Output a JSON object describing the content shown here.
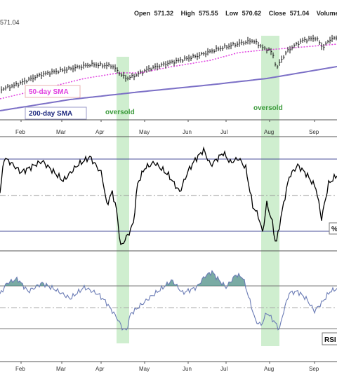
{
  "quote": {
    "open_label": "Open",
    "open": "571.32",
    "high_label": "High",
    "high": "575.55",
    "low_label": "Low",
    "low": "570.62",
    "close_label": "Close",
    "close": "571.04",
    "volume_label": "Volume"
  },
  "price_tag": "571.04",
  "legend": {
    "sma50": "50-day SMA",
    "sma200": "200-day SMA",
    "sma50_color": "#e040e0",
    "sma200_color": "#7b6fc6",
    "sma50_border": "#e8b0b0",
    "sma200_border": "#9a9ac8"
  },
  "annotations": {
    "oversold_1": "oversold",
    "oversold_2": "oversold"
  },
  "indicator_tags": {
    "middle": "%",
    "bottom": "RSI"
  },
  "months": [
    "Feb",
    "Mar",
    "Apr",
    "May",
    "Jun",
    "Jul",
    "Aug",
    "Sep"
  ],
  "colors": {
    "highlight": "#bfe8bf",
    "price": "#111111",
    "osc": "#000000",
    "rsi": "#6a7bb5",
    "rsi_fill": "#4e8f85"
  },
  "chart_data": [
    {
      "type": "line",
      "panel": "price",
      "series": [
        {
          "name": "50-day SMA",
          "values": [
            540,
            545,
            548,
            551,
            552,
            556,
            562,
            564
          ]
        },
        {
          "name": "200-day SMA",
          "values": [
            508,
            513,
            519,
            526,
            532,
            540,
            547,
            553
          ]
        }
      ],
      "categories": [
        "Feb",
        "Mar",
        "Apr",
        "May",
        "Jun",
        "Jul",
        "Aug",
        "Sep"
      ],
      "highlighted_windows": [
        "mid-Apr",
        "early Aug"
      ]
    },
    {
      "type": "line",
      "panel": "oscillator",
      "reference_lines": [
        "upper",
        "middle",
        "lower"
      ]
    },
    {
      "type": "area",
      "panel": "rsi",
      "reference_lines": [
        "upper",
        "middle",
        "lower"
      ]
    }
  ]
}
